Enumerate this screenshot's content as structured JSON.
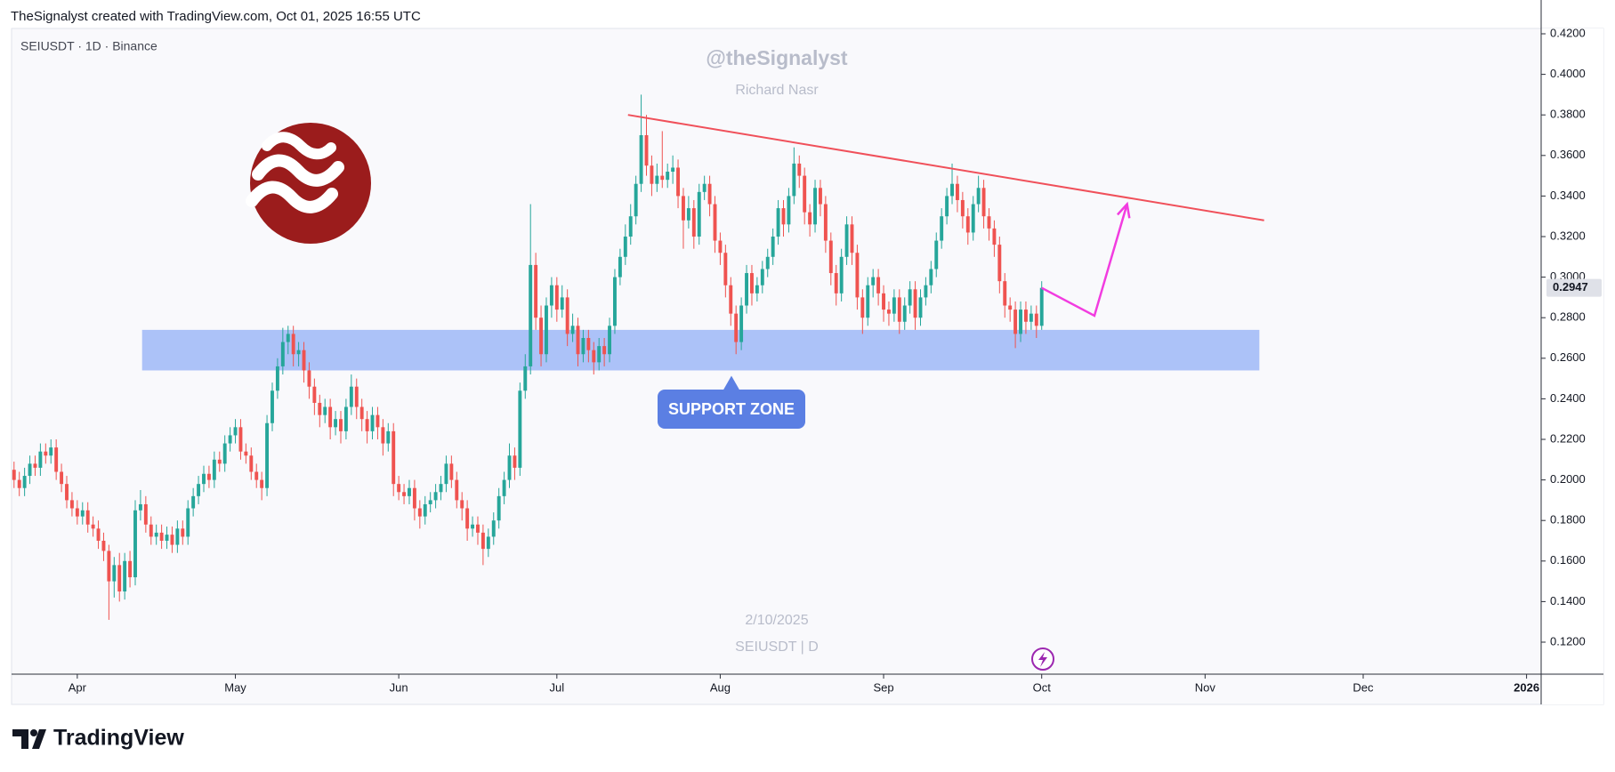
{
  "header": {
    "credit": "TheSignalyst created with TradingView.com, Oct 01, 2025 16:55 UTC",
    "brand": "TradingView"
  },
  "chart_data": {
    "type": "candlestick",
    "symbol": "SEIUSDT · 1D · Binance",
    "watermark": {
      "author": "@theSignalyst",
      "name": "Richard Nasr",
      "date": "2/10/2025",
      "symbol": "SEIUSDT | D"
    },
    "up_color": "#26a69a",
    "down_color": "#ef5350",
    "ylim": [
      0.12,
      0.42
    ],
    "yticks": [
      {
        "value": 0.12,
        "label": "0.1200"
      },
      {
        "value": 0.14,
        "label": "0.1400"
      },
      {
        "value": 0.16,
        "label": "0.1600"
      },
      {
        "value": 0.18,
        "label": "0.1800"
      },
      {
        "value": 0.2,
        "label": "0.2000"
      },
      {
        "value": 0.22,
        "label": "0.2200"
      },
      {
        "value": 0.24,
        "label": "0.2400"
      },
      {
        "value": 0.26,
        "label": "0.2600"
      },
      {
        "value": 0.28,
        "label": "0.2800"
      },
      {
        "value": 0.3,
        "label": "0.3000"
      },
      {
        "value": 0.32,
        "label": "0.3200"
      },
      {
        "value": 0.34,
        "label": "0.3400"
      },
      {
        "value": 0.36,
        "label": "0.3600"
      },
      {
        "value": 0.38,
        "label": "0.3800"
      },
      {
        "value": 0.4,
        "label": "0.4000"
      },
      {
        "value": 0.42,
        "label": "0.4200"
      }
    ],
    "xlim": [
      -0.3,
      289.6
    ],
    "xticks": [
      {
        "value": 12,
        "label": "Apr"
      },
      {
        "value": 42,
        "label": "May"
      },
      {
        "value": 73,
        "label": "Jun"
      },
      {
        "value": 103,
        "label": "Jul"
      },
      {
        "value": 134,
        "label": "Aug"
      },
      {
        "value": 165,
        "label": "Sep"
      },
      {
        "value": 195,
        "label": "Oct"
      },
      {
        "value": 226,
        "label": "Nov"
      },
      {
        "value": 256,
        "label": "Dec"
      },
      {
        "value": 287,
        "label": "2026"
      }
    ],
    "last_price": {
      "value": 0.2947,
      "label": "0.2947"
    },
    "support_zone": {
      "label": "SUPPORT ZONE",
      "from": 0.254,
      "to": 0.274,
      "x": [
        24.3,
        236.3
      ],
      "color": "#9fb8f7"
    },
    "trendline": {
      "x": [
        116.5,
        237.2
      ],
      "y": [
        0.38,
        0.328
      ],
      "color": "#f0505a"
    },
    "projection": {
      "x": [
        195,
        205,
        211.2
      ],
      "y": [
        0.2947,
        0.281,
        0.336
      ],
      "color": "#f23ce0"
    },
    "candles": [
      [
        0.205,
        0.209,
        0.196,
        0.2
      ],
      [
        0.2,
        0.204,
        0.192,
        0.196
      ],
      [
        0.196,
        0.206,
        0.192,
        0.202
      ],
      [
        0.202,
        0.212,
        0.198,
        0.208
      ],
      [
        0.208,
        0.212,
        0.202,
        0.206
      ],
      [
        0.206,
        0.218,
        0.202,
        0.214
      ],
      [
        0.214,
        0.218,
        0.208,
        0.212
      ],
      [
        0.212,
        0.22,
        0.208,
        0.216
      ],
      [
        0.216,
        0.22,
        0.2,
        0.204
      ],
      [
        0.204,
        0.208,
        0.194,
        0.198
      ],
      [
        0.198,
        0.202,
        0.186,
        0.19
      ],
      [
        0.19,
        0.194,
        0.182,
        0.186
      ],
      [
        0.186,
        0.19,
        0.178,
        0.182
      ],
      [
        0.182,
        0.189,
        0.178,
        0.185
      ],
      [
        0.185,
        0.189,
        0.174,
        0.178
      ],
      [
        0.178,
        0.182,
        0.172,
        0.176
      ],
      [
        0.176,
        0.18,
        0.166,
        0.17
      ],
      [
        0.17,
        0.174,
        0.16,
        0.165
      ],
      [
        0.165,
        0.168,
        0.131,
        0.15
      ],
      [
        0.15,
        0.162,
        0.142,
        0.158
      ],
      [
        0.158,
        0.164,
        0.14,
        0.145
      ],
      [
        0.145,
        0.164,
        0.141,
        0.16
      ],
      [
        0.16,
        0.165,
        0.147,
        0.152
      ],
      [
        0.152,
        0.19,
        0.148,
        0.185
      ],
      [
        0.185,
        0.195,
        0.18,
        0.188
      ],
      [
        0.188,
        0.192,
        0.174,
        0.178
      ],
      [
        0.178,
        0.182,
        0.168,
        0.172
      ],
      [
        0.172,
        0.178,
        0.168,
        0.174
      ],
      [
        0.174,
        0.178,
        0.166,
        0.17
      ],
      [
        0.17,
        0.177,
        0.166,
        0.173
      ],
      [
        0.173,
        0.177,
        0.164,
        0.168
      ],
      [
        0.168,
        0.18,
        0.164,
        0.176
      ],
      [
        0.176,
        0.18,
        0.168,
        0.172
      ],
      [
        0.172,
        0.19,
        0.168,
        0.186
      ],
      [
        0.186,
        0.196,
        0.182,
        0.192
      ],
      [
        0.192,
        0.202,
        0.188,
        0.198
      ],
      [
        0.198,
        0.207,
        0.194,
        0.203
      ],
      [
        0.203,
        0.207,
        0.196,
        0.2
      ],
      [
        0.2,
        0.214,
        0.196,
        0.21
      ],
      [
        0.21,
        0.214,
        0.204,
        0.208
      ],
      [
        0.208,
        0.222,
        0.204,
        0.218
      ],
      [
        0.218,
        0.226,
        0.214,
        0.222
      ],
      [
        0.222,
        0.23,
        0.218,
        0.226
      ],
      [
        0.226,
        0.23,
        0.21,
        0.214
      ],
      [
        0.214,
        0.218,
        0.208,
        0.212
      ],
      [
        0.212,
        0.216,
        0.2,
        0.204
      ],
      [
        0.204,
        0.208,
        0.196,
        0.2
      ],
      [
        0.2,
        0.204,
        0.19,
        0.196
      ],
      [
        0.196,
        0.232,
        0.192,
        0.228
      ],
      [
        0.228,
        0.248,
        0.224,
        0.244
      ],
      [
        0.244,
        0.26,
        0.24,
        0.256
      ],
      [
        0.256,
        0.275,
        0.252,
        0.268
      ],
      [
        0.268,
        0.276,
        0.262,
        0.272
      ],
      [
        0.272,
        0.276,
        0.256,
        0.262
      ],
      [
        0.262,
        0.268,
        0.256,
        0.264
      ],
      [
        0.264,
        0.268,
        0.248,
        0.254
      ],
      [
        0.254,
        0.258,
        0.24,
        0.246
      ],
      [
        0.246,
        0.25,
        0.232,
        0.238
      ],
      [
        0.238,
        0.242,
        0.226,
        0.232
      ],
      [
        0.232,
        0.24,
        0.228,
        0.236
      ],
      [
        0.236,
        0.24,
        0.22,
        0.226
      ],
      [
        0.226,
        0.234,
        0.222,
        0.23
      ],
      [
        0.23,
        0.234,
        0.218,
        0.224
      ],
      [
        0.224,
        0.24,
        0.22,
        0.236
      ],
      [
        0.236,
        0.252,
        0.232,
        0.246
      ],
      [
        0.246,
        0.25,
        0.23,
        0.236
      ],
      [
        0.236,
        0.24,
        0.224,
        0.23
      ],
      [
        0.23,
        0.234,
        0.218,
        0.224
      ],
      [
        0.224,
        0.236,
        0.22,
        0.232
      ],
      [
        0.232,
        0.236,
        0.22,
        0.226
      ],
      [
        0.226,
        0.23,
        0.212,
        0.218
      ],
      [
        0.218,
        0.228,
        0.214,
        0.224
      ],
      [
        0.224,
        0.228,
        0.192,
        0.198
      ],
      [
        0.198,
        0.202,
        0.19,
        0.194
      ],
      [
        0.194,
        0.198,
        0.188,
        0.192
      ],
      [
        0.192,
        0.2,
        0.188,
        0.196
      ],
      [
        0.196,
        0.2,
        0.18,
        0.186
      ],
      [
        0.186,
        0.19,
        0.176,
        0.182
      ],
      [
        0.182,
        0.192,
        0.178,
        0.188
      ],
      [
        0.188,
        0.194,
        0.184,
        0.19
      ],
      [
        0.19,
        0.198,
        0.186,
        0.194
      ],
      [
        0.194,
        0.202,
        0.19,
        0.198
      ],
      [
        0.198,
        0.212,
        0.194,
        0.208
      ],
      [
        0.208,
        0.212,
        0.196,
        0.2
      ],
      [
        0.2,
        0.204,
        0.186,
        0.19
      ],
      [
        0.19,
        0.194,
        0.18,
        0.186
      ],
      [
        0.186,
        0.19,
        0.17,
        0.176
      ],
      [
        0.176,
        0.182,
        0.172,
        0.178
      ],
      [
        0.178,
        0.182,
        0.168,
        0.174
      ],
      [
        0.174,
        0.178,
        0.158,
        0.166
      ],
      [
        0.166,
        0.176,
        0.162,
        0.172
      ],
      [
        0.172,
        0.184,
        0.168,
        0.18
      ],
      [
        0.18,
        0.196,
        0.176,
        0.192
      ],
      [
        0.192,
        0.204,
        0.188,
        0.2
      ],
      [
        0.2,
        0.218,
        0.196,
        0.212
      ],
      [
        0.212,
        0.216,
        0.2,
        0.206
      ],
      [
        0.206,
        0.248,
        0.202,
        0.244
      ],
      [
        0.244,
        0.262,
        0.24,
        0.256
      ],
      [
        0.256,
        0.336,
        0.252,
        0.306
      ],
      [
        0.306,
        0.312,
        0.274,
        0.28
      ],
      [
        0.28,
        0.286,
        0.256,
        0.262
      ],
      [
        0.262,
        0.29,
        0.258,
        0.286
      ],
      [
        0.286,
        0.3,
        0.28,
        0.296
      ],
      [
        0.296,
        0.3,
        0.278,
        0.284
      ],
      [
        0.284,
        0.296,
        0.28,
        0.29
      ],
      [
        0.29,
        0.294,
        0.266,
        0.272
      ],
      [
        0.272,
        0.282,
        0.268,
        0.276
      ],
      [
        0.276,
        0.28,
        0.256,
        0.262
      ],
      [
        0.262,
        0.274,
        0.258,
        0.27
      ],
      [
        0.27,
        0.274,
        0.258,
        0.264
      ],
      [
        0.264,
        0.268,
        0.252,
        0.258
      ],
      [
        0.258,
        0.27,
        0.254,
        0.266
      ],
      [
        0.266,
        0.27,
        0.256,
        0.262
      ],
      [
        0.262,
        0.28,
        0.258,
        0.276
      ],
      [
        0.276,
        0.304,
        0.272,
        0.3
      ],
      [
        0.3,
        0.314,
        0.296,
        0.31
      ],
      [
        0.31,
        0.326,
        0.306,
        0.32
      ],
      [
        0.32,
        0.336,
        0.316,
        0.33
      ],
      [
        0.33,
        0.35,
        0.326,
        0.346
      ],
      [
        0.346,
        0.39,
        0.342,
        0.37
      ],
      [
        0.37,
        0.38,
        0.35,
        0.355
      ],
      [
        0.355,
        0.36,
        0.34,
        0.346
      ],
      [
        0.346,
        0.356,
        0.342,
        0.35
      ],
      [
        0.35,
        0.372,
        0.344,
        0.348
      ],
      [
        0.348,
        0.356,
        0.344,
        0.352
      ],
      [
        0.352,
        0.36,
        0.346,
        0.354
      ],
      [
        0.354,
        0.358,
        0.334,
        0.34
      ],
      [
        0.34,
        0.344,
        0.314,
        0.328
      ],
      [
        0.328,
        0.34,
        0.324,
        0.334
      ],
      [
        0.334,
        0.338,
        0.314,
        0.32
      ],
      [
        0.32,
        0.346,
        0.316,
        0.342
      ],
      [
        0.342,
        0.35,
        0.338,
        0.346
      ],
      [
        0.346,
        0.35,
        0.33,
        0.336
      ],
      [
        0.336,
        0.34,
        0.312,
        0.318
      ],
      [
        0.318,
        0.322,
        0.306,
        0.312
      ],
      [
        0.312,
        0.316,
        0.29,
        0.296
      ],
      [
        0.296,
        0.3,
        0.276,
        0.282
      ],
      [
        0.282,
        0.286,
        0.262,
        0.268
      ],
      [
        0.268,
        0.29,
        0.264,
        0.286
      ],
      [
        0.286,
        0.306,
        0.282,
        0.302
      ],
      [
        0.302,
        0.306,
        0.286,
        0.292
      ],
      [
        0.292,
        0.3,
        0.288,
        0.296
      ],
      [
        0.296,
        0.308,
        0.292,
        0.304
      ],
      [
        0.304,
        0.314,
        0.3,
        0.31
      ],
      [
        0.31,
        0.324,
        0.306,
        0.32
      ],
      [
        0.32,
        0.338,
        0.316,
        0.334
      ],
      [
        0.334,
        0.338,
        0.32,
        0.326
      ],
      [
        0.326,
        0.344,
        0.322,
        0.34
      ],
      [
        0.34,
        0.364,
        0.336,
        0.356
      ],
      [
        0.356,
        0.36,
        0.344,
        0.35
      ],
      [
        0.35,
        0.354,
        0.326,
        0.332
      ],
      [
        0.332,
        0.336,
        0.32,
        0.326
      ],
      [
        0.326,
        0.348,
        0.322,
        0.344
      ],
      [
        0.344,
        0.348,
        0.33,
        0.336
      ],
      [
        0.336,
        0.34,
        0.312,
        0.318
      ],
      [
        0.318,
        0.322,
        0.296,
        0.302
      ],
      [
        0.302,
        0.306,
        0.286,
        0.292
      ],
      [
        0.292,
        0.314,
        0.288,
        0.31
      ],
      [
        0.31,
        0.33,
        0.306,
        0.326
      ],
      [
        0.326,
        0.33,
        0.306,
        0.312
      ],
      [
        0.312,
        0.316,
        0.284,
        0.29
      ],
      [
        0.29,
        0.294,
        0.272,
        0.28
      ],
      [
        0.28,
        0.3,
        0.276,
        0.296
      ],
      [
        0.296,
        0.304,
        0.29,
        0.3
      ],
      [
        0.3,
        0.304,
        0.286,
        0.292
      ],
      [
        0.292,
        0.296,
        0.278,
        0.284
      ],
      [
        0.284,
        0.288,
        0.276,
        0.282
      ],
      [
        0.282,
        0.294,
        0.278,
        0.29
      ],
      [
        0.29,
        0.294,
        0.272,
        0.278
      ],
      [
        0.278,
        0.29,
        0.274,
        0.286
      ],
      [
        0.286,
        0.298,
        0.282,
        0.294
      ],
      [
        0.294,
        0.298,
        0.274,
        0.28
      ],
      [
        0.28,
        0.294,
        0.276,
        0.29
      ],
      [
        0.29,
        0.3,
        0.286,
        0.296
      ],
      [
        0.296,
        0.308,
        0.292,
        0.304
      ],
      [
        0.304,
        0.322,
        0.3,
        0.318
      ],
      [
        0.318,
        0.334,
        0.314,
        0.33
      ],
      [
        0.33,
        0.344,
        0.326,
        0.34
      ],
      [
        0.34,
        0.356,
        0.336,
        0.346
      ],
      [
        0.346,
        0.35,
        0.332,
        0.338
      ],
      [
        0.338,
        0.342,
        0.324,
        0.33
      ],
      [
        0.33,
        0.334,
        0.316,
        0.322
      ],
      [
        0.322,
        0.34,
        0.318,
        0.336
      ],
      [
        0.336,
        0.35,
        0.332,
        0.344
      ],
      [
        0.344,
        0.348,
        0.324,
        0.33
      ],
      [
        0.33,
        0.334,
        0.318,
        0.324
      ],
      [
        0.324,
        0.328,
        0.31,
        0.316
      ],
      [
        0.316,
        0.32,
        0.292,
        0.298
      ],
      [
        0.298,
        0.302,
        0.28,
        0.286
      ],
      [
        0.286,
        0.29,
        0.278,
        0.284
      ],
      [
        0.284,
        0.288,
        0.265,
        0.272
      ],
      [
        0.272,
        0.288,
        0.268,
        0.284
      ],
      [
        0.284,
        0.288,
        0.272,
        0.278
      ],
      [
        0.278,
        0.286,
        0.274,
        0.282
      ],
      [
        0.282,
        0.286,
        0.27,
        0.276
      ],
      [
        0.276,
        0.298,
        0.274,
        0.2947
      ]
    ]
  }
}
